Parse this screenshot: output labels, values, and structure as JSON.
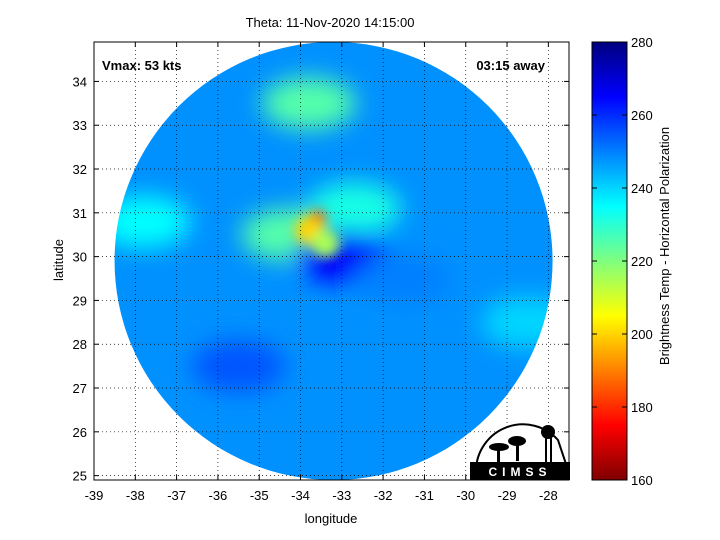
{
  "chart_data": {
    "type": "heatmap",
    "title": "Theta: 11-Nov-2020 14:15:00",
    "xlabel": "longitude",
    "ylabel": "latitude",
    "xlim": [
      -39,
      -27.5
    ],
    "ylim": [
      24.9,
      34.9
    ],
    "xticks": [
      -39,
      -38,
      -37,
      -36,
      -35,
      -34,
      -33,
      -32,
      -31,
      -30,
      -29,
      -28
    ],
    "yticks": [
      25,
      26,
      27,
      28,
      29,
      30,
      31,
      32,
      33,
      34
    ],
    "grid": true,
    "annotations": {
      "vmax": "Vmax: 53 kts",
      "time_away": "03:15 away"
    },
    "swath": {
      "center_lon": -33.2,
      "center_lat": 29.9,
      "radius_deg_lat": 5.0
    },
    "storm_center": {
      "lon": -33.6,
      "lat": 30.8
    },
    "colorbar": {
      "label": "Brightness Temp - Horizontal Polarization",
      "min": 160,
      "max": 280,
      "ticks": [
        160,
        180,
        200,
        220,
        240,
        260,
        280
      ],
      "colormap": "jet"
    },
    "brightness_temp_features": [
      {
        "lon": -33.6,
        "lat": 30.85,
        "value": 180
      },
      {
        "lon": -33.8,
        "lat": 30.6,
        "value": 200
      },
      {
        "lon": -33.4,
        "lat": 30.3,
        "value": 215
      },
      {
        "lon": -34.3,
        "lat": 30.5,
        "value": 225
      },
      {
        "lon": -32.7,
        "lat": 31.1,
        "value": 232
      },
      {
        "lon": -33.0,
        "lat": 30.0,
        "value": 265
      },
      {
        "lon": -37.8,
        "lat": 30.8,
        "value": 235
      },
      {
        "lon": -33.8,
        "lat": 33.5,
        "value": 225
      },
      {
        "lon": -31.5,
        "lat": 29.5,
        "value": 250
      },
      {
        "lon": -35.5,
        "lat": 27.5,
        "value": 255
      },
      {
        "lon": -28.5,
        "lat": 28.5,
        "value": 240
      }
    ]
  },
  "logo": {
    "text": "CIMSS"
  }
}
